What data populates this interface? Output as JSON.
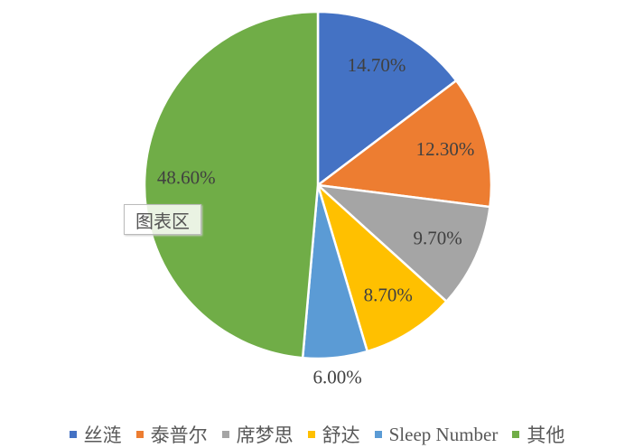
{
  "chart_data": {
    "type": "pie",
    "categories": [
      "丝涟",
      "泰普尔",
      "席梦思",
      "舒达",
      "Sleep Number",
      "其他"
    ],
    "values": [
      14.7,
      12.3,
      9.7,
      8.7,
      6.0,
      48.6
    ],
    "value_labels": [
      "14.70%",
      "12.30%",
      "9.70%",
      "8.70%",
      "6.00%",
      "48.60%"
    ],
    "colors": [
      "#4472c4",
      "#ed7d31",
      "#a5a5a5",
      "#ffc000",
      "#5b9bd5",
      "#70ad47"
    ],
    "legend": "bottom",
    "tooltip": "图表区"
  }
}
